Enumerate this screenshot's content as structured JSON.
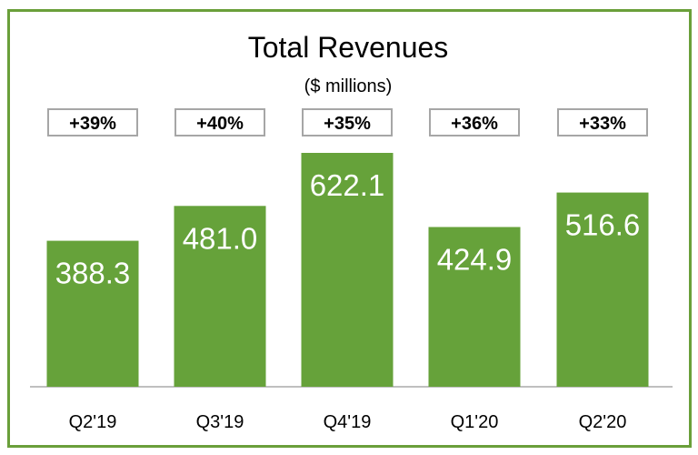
{
  "chart_data": {
    "type": "bar",
    "title": "Total Revenues",
    "subtitle": "($ millions)",
    "categories": [
      "Q2'19",
      "Q3'19",
      "Q4'19",
      "Q1'20",
      "Q2'20"
    ],
    "values": [
      388.3,
      481.0,
      622.1,
      424.9,
      516.6
    ],
    "value_labels": [
      "388.3",
      "481.0",
      "622.1",
      "424.9",
      "516.6"
    ],
    "growth_labels": [
      "+39%",
      "+40%",
      "+35%",
      "+36%",
      "+33%"
    ],
    "xlabel": "",
    "ylabel": "",
    "ylim": [
      0,
      622.1
    ],
    "grid": false,
    "legend": "none",
    "colors": {
      "bar": "#66a23a",
      "frame": "#6a9f3a",
      "axis": "#bfbfbf",
      "box_border": "#a6a6a6"
    }
  }
}
